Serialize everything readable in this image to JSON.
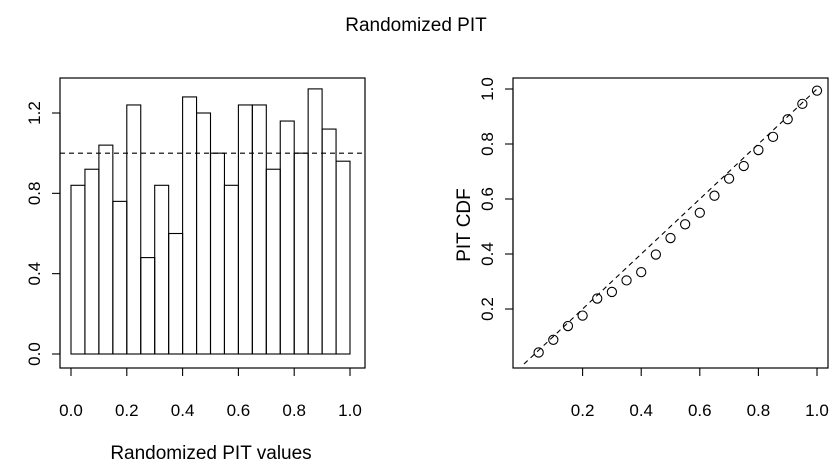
{
  "title": "Randomized PIT",
  "chart_data": [
    {
      "type": "bar",
      "subtype": "histogram",
      "xlabel": "Randomized PIT values",
      "ylabel": "",
      "xlim": [
        0,
        1
      ],
      "ylim": [
        0,
        1.3
      ],
      "bin_width": 0.05,
      "bin_starts": [
        0,
        0.05,
        0.1,
        0.15,
        0.2,
        0.25,
        0.3,
        0.35,
        0.4,
        0.45,
        0.5,
        0.55,
        0.6,
        0.65,
        0.7,
        0.75,
        0.8,
        0.85,
        0.9,
        0.95
      ],
      "values": [
        0.84,
        0.92,
        1.04,
        0.76,
        1.24,
        0.48,
        0.84,
        0.6,
        1.28,
        1.2,
        1.0,
        0.84,
        1.24,
        1.24,
        0.92,
        1.16,
        1.0,
        1.32,
        1.12,
        0.96
      ],
      "reference_line": 1.0,
      "xticks": [
        "0.0",
        "0.2",
        "0.4",
        "0.6",
        "0.8",
        "1.0"
      ],
      "yticks": [
        "0.0",
        "0.4",
        "0.8",
        "1.2"
      ],
      "grid": false
    },
    {
      "type": "scatter",
      "xlabel": "",
      "ylabel": "PIT CDF",
      "xlim": [
        0,
        1
      ],
      "ylim": [
        0,
        1
      ],
      "x": [
        0.05,
        0.1,
        0.15,
        0.2,
        0.25,
        0.3,
        0.35,
        0.4,
        0.45,
        0.5,
        0.55,
        0.6,
        0.65,
        0.7,
        0.75,
        0.8,
        0.85,
        0.9,
        0.95,
        1.0
      ],
      "y": [
        0.042,
        0.088,
        0.138,
        0.176,
        0.238,
        0.262,
        0.304,
        0.334,
        0.398,
        0.458,
        0.508,
        0.55,
        0.612,
        0.674,
        0.72,
        0.778,
        0.826,
        0.89,
        0.946,
        0.994
      ],
      "reference_line": "diagonal",
      "xticks": [
        "0.2",
        "0.4",
        "0.6",
        "0.8",
        "1.0"
      ],
      "yticks": [
        "0.2",
        "0.4",
        "0.6",
        "0.8",
        "1.0"
      ],
      "grid": false
    }
  ]
}
